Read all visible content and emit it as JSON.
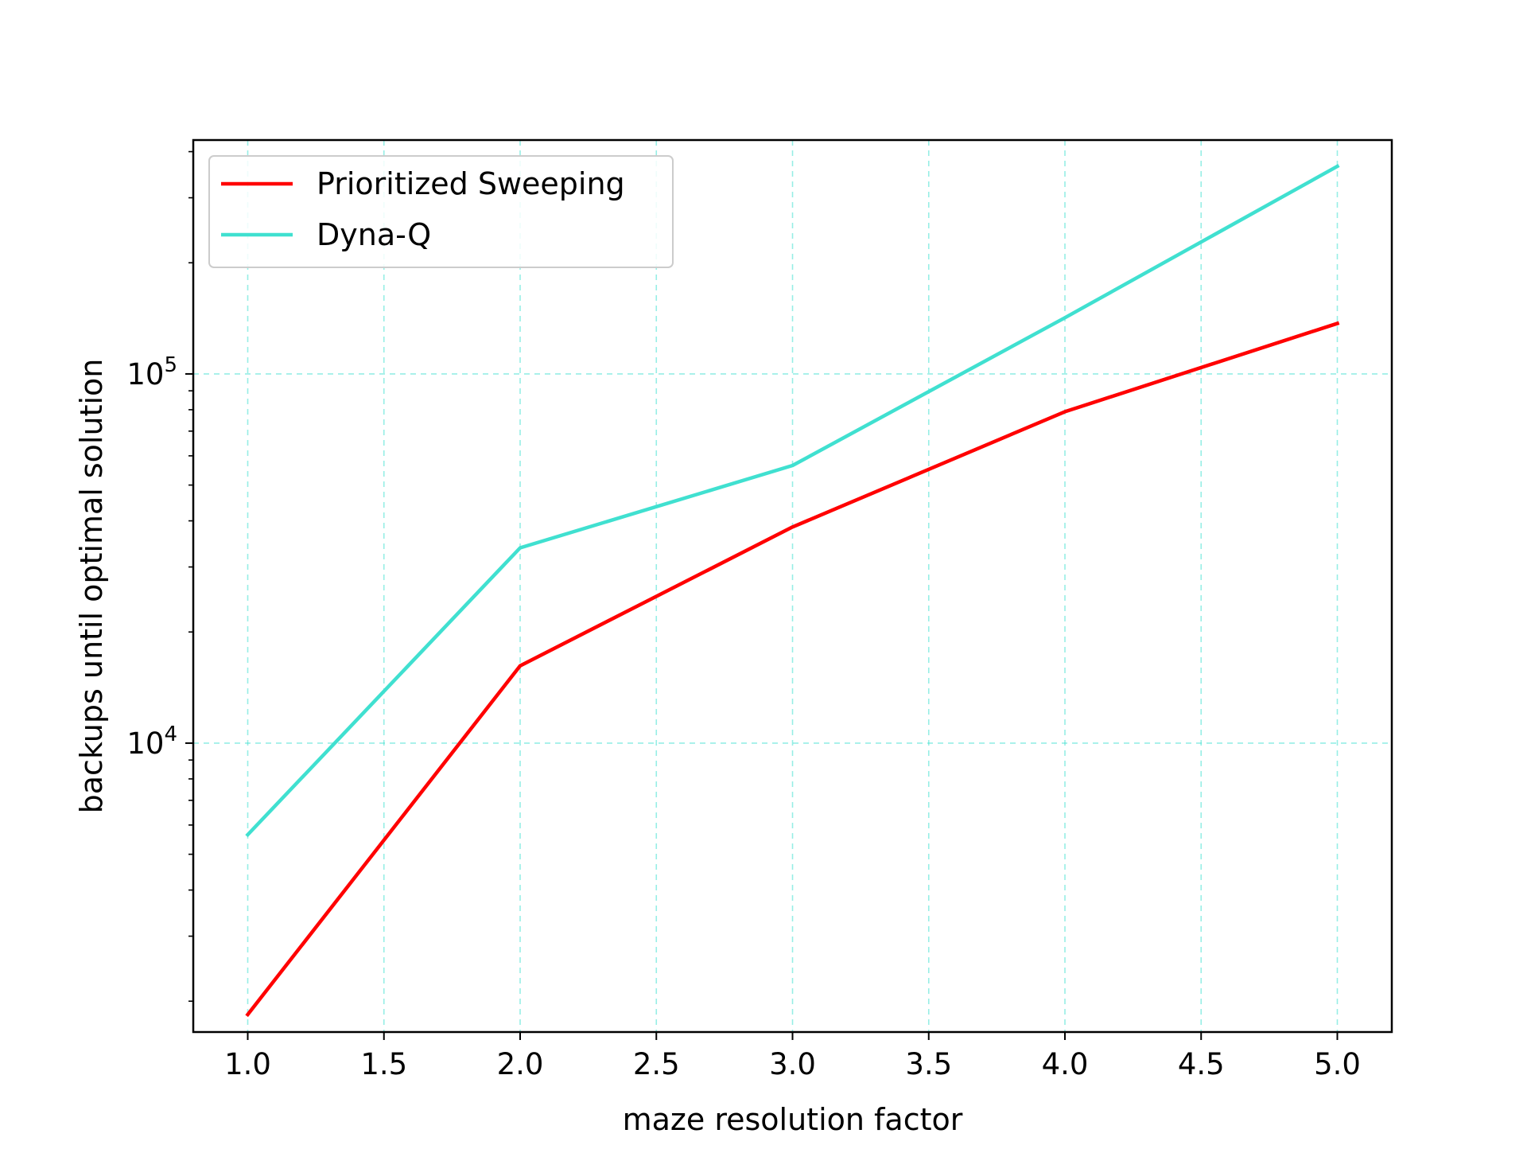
{
  "chart_data": {
    "type": "line",
    "title": "",
    "xlabel": "maze resolution factor",
    "ylabel": "backups until optimal solution",
    "x": [
      1,
      2,
      3,
      4,
      5
    ],
    "xlim": [
      0.8,
      5.2
    ],
    "ylim": [
      1650,
      430000
    ],
    "yscale": "log",
    "x_ticks": [
      1.0,
      1.5,
      2.0,
      2.5,
      3.0,
      3.5,
      4.0,
      4.5,
      5.0
    ],
    "x_tick_labels": [
      "1.0",
      "1.5",
      "2.0",
      "2.5",
      "3.0",
      "3.5",
      "4.0",
      "4.5",
      "5.0"
    ],
    "y_major_ticks": [
      10000,
      100000
    ],
    "y_tick_labels": [
      {
        "base": "10",
        "exp": "4"
      },
      {
        "base": "10",
        "exp": "5"
      }
    ],
    "grid": true,
    "grid_color": "#40e0d0",
    "legend": "upper-left",
    "series": [
      {
        "name": "Prioritized Sweeping",
        "color": "#ff0000",
        "values": [
          1840,
          16200,
          38500,
          79000,
          137000
        ]
      },
      {
        "name": "Dyna-Q",
        "color": "#40e0d0",
        "values": [
          5650,
          33800,
          56500,
          142000,
          365000
        ]
      }
    ]
  }
}
